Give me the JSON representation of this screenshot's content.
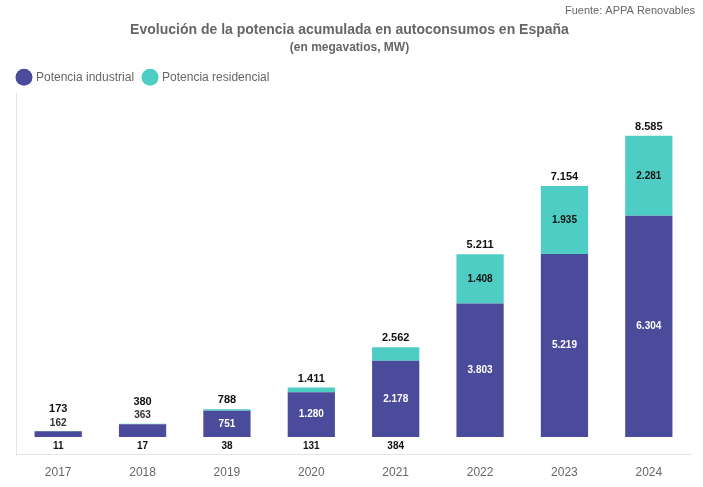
{
  "chart_data": {
    "type": "bar",
    "title": "Evolución de la potencia acumulada en autoconsumos en España",
    "subtitle": "(en megavatios, MW)",
    "annotations": [
      "Fuente: APPA Renovables"
    ],
    "categories": [
      "2017",
      "2018",
      "2019",
      "2020",
      "2021",
      "2022",
      "2023",
      "2024"
    ],
    "series": [
      {
        "name": "Potencia industrial",
        "color": "#4b4b9b",
        "values": [
          162,
          363,
          751,
          1280,
          2178,
          3803,
          5219,
          6304
        ],
        "value_labels": [
          "162",
          "363",
          "751",
          "1.280",
          "2.178",
          "3.803",
          "5.219",
          "6.304"
        ]
      },
      {
        "name": "Potencia residencial",
        "color": "#4ecdc4",
        "values": [
          11,
          17,
          38,
          131,
          384,
          1408,
          1935,
          2281
        ],
        "value_labels": [
          "11",
          "17",
          "38",
          "131",
          "384",
          "1.408",
          "1.935",
          "2.281"
        ]
      }
    ],
    "totals": [
      173,
      380,
      788,
      1411,
      2562,
      5211,
      7154,
      8585
    ],
    "total_labels": [
      "173",
      "380",
      "788",
      "1.411",
      "2.562",
      "5.211",
      "7.154",
      "8.585"
    ],
    "stacked": true,
    "data_labels": true,
    "ylim": [
      -500,
      9800
    ],
    "yticks": [],
    "tick_labels": "x",
    "grid": false,
    "legend": "upper left"
  }
}
